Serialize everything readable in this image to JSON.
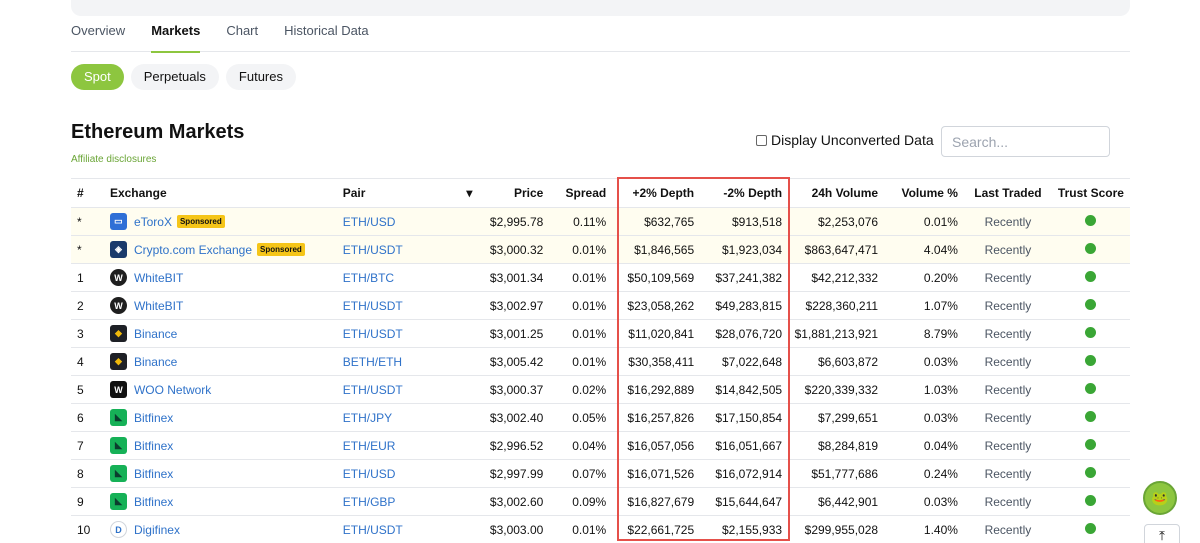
{
  "tabs": [
    {
      "label": "Overview",
      "active": false
    },
    {
      "label": "Markets",
      "active": true
    },
    {
      "label": "Chart",
      "active": false
    },
    {
      "label": "Historical Data",
      "active": false
    }
  ],
  "pills": [
    {
      "label": "Spot",
      "active": true
    },
    {
      "label": "Perpetuals",
      "active": false
    },
    {
      "label": "Futures",
      "active": false
    }
  ],
  "title": "Ethereum Markets",
  "affiliate": "Affiliate disclosures",
  "unconverted_label": "Display Unconverted Data",
  "search_placeholder": "Search...",
  "columns": {
    "rank": "#",
    "exchange": "Exchange",
    "pair": "Pair",
    "sort": "▾",
    "price": "Price",
    "spread": "Spread",
    "plus_depth": "+2% Depth",
    "minus_depth": "-2% Depth",
    "volume": "24h Volume",
    "volume_pct": "Volume %",
    "last_traded": "Last Traded",
    "trust": "Trust Score"
  },
  "sponsored_label": "Sponsored",
  "rows": [
    {
      "rank": "*",
      "exchange": "eToroX",
      "sponsored": true,
      "logo": {
        "bg": "#2f6fd6",
        "glyph": "▭",
        "shape": "sq"
      },
      "pair": "ETH/USD",
      "price": "$2,995.78",
      "spread": "0.11%",
      "plus_depth": "$632,765",
      "minus_depth": "$913,518",
      "volume": "$2,253,076",
      "volume_pct": "0.01%",
      "last_traded": "Recently",
      "trust_color": "#3aa635"
    },
    {
      "rank": "*",
      "exchange": "Crypto.com Exchange",
      "sponsored": true,
      "logo": {
        "bg": "#1a3a6b",
        "glyph": "◈",
        "shape": "sq"
      },
      "pair": "ETH/USDT",
      "price": "$3,000.32",
      "spread": "0.01%",
      "plus_depth": "$1,846,565",
      "minus_depth": "$1,923,034",
      "volume": "$863,647,471",
      "volume_pct": "4.04%",
      "last_traded": "Recently",
      "trust_color": "#3aa635"
    },
    {
      "rank": "1",
      "exchange": "WhiteBIT",
      "sponsored": false,
      "logo": {
        "bg": "#1f1f1f",
        "glyph": "W",
        "shape": "circle"
      },
      "pair": "ETH/BTC",
      "price": "$3,001.34",
      "spread": "0.01%",
      "plus_depth": "$50,109,569",
      "minus_depth": "$37,241,382",
      "volume": "$42,212,332",
      "volume_pct": "0.20%",
      "last_traded": "Recently",
      "trust_color": "#3aa635"
    },
    {
      "rank": "2",
      "exchange": "WhiteBIT",
      "sponsored": false,
      "logo": {
        "bg": "#1f1f1f",
        "glyph": "W",
        "shape": "circle"
      },
      "pair": "ETH/USDT",
      "price": "$3,002.97",
      "spread": "0.01%",
      "plus_depth": "$23,058,262",
      "minus_depth": "$49,283,815",
      "volume": "$228,360,211",
      "volume_pct": "1.07%",
      "last_traded": "Recently",
      "trust_color": "#3aa635"
    },
    {
      "rank": "3",
      "exchange": "Binance",
      "sponsored": false,
      "logo": {
        "bg": "#1e2026",
        "glyph": "◆",
        "shape": "sq",
        "fg": "#f0b90b"
      },
      "pair": "ETH/USDT",
      "price": "$3,001.25",
      "spread": "0.01%",
      "plus_depth": "$11,020,841",
      "minus_depth": "$28,076,720",
      "volume": "$1,881,213,921",
      "volume_pct": "8.79%",
      "last_traded": "Recently",
      "trust_color": "#3aa635"
    },
    {
      "rank": "4",
      "exchange": "Binance",
      "sponsored": false,
      "logo": {
        "bg": "#1e2026",
        "glyph": "◆",
        "shape": "sq",
        "fg": "#f0b90b"
      },
      "pair": "BETH/ETH",
      "price": "$3,005.42",
      "spread": "0.01%",
      "plus_depth": "$30,358,411",
      "minus_depth": "$7,022,648",
      "volume": "$6,603,872",
      "volume_pct": "0.03%",
      "last_traded": "Recently",
      "trust_color": "#3aa635"
    },
    {
      "rank": "5",
      "exchange": "WOO Network",
      "sponsored": false,
      "logo": {
        "bg": "#111111",
        "glyph": "W",
        "shape": "sq"
      },
      "pair": "ETH/USDT",
      "price": "$3,000.37",
      "spread": "0.02%",
      "plus_depth": "$16,292,889",
      "minus_depth": "$14,842,505",
      "volume": "$220,339,332",
      "volume_pct": "1.03%",
      "last_traded": "Recently",
      "trust_color": "#3aa635"
    },
    {
      "rank": "6",
      "exchange": "Bitfinex",
      "sponsored": false,
      "logo": {
        "bg": "#16b157",
        "glyph": "◣",
        "shape": "sq",
        "fg": "#0b3d2e"
      },
      "pair": "ETH/JPY",
      "price": "$3,002.40",
      "spread": "0.05%",
      "plus_depth": "$16,257,826",
      "minus_depth": "$17,150,854",
      "volume": "$7,299,651",
      "volume_pct": "0.03%",
      "last_traded": "Recently",
      "trust_color": "#3aa635"
    },
    {
      "rank": "7",
      "exchange": "Bitfinex",
      "sponsored": false,
      "logo": {
        "bg": "#16b157",
        "glyph": "◣",
        "shape": "sq",
        "fg": "#0b3d2e"
      },
      "pair": "ETH/EUR",
      "price": "$2,996.52",
      "spread": "0.04%",
      "plus_depth": "$16,057,056",
      "minus_depth": "$16,051,667",
      "volume": "$8,284,819",
      "volume_pct": "0.04%",
      "last_traded": "Recently",
      "trust_color": "#3aa635"
    },
    {
      "rank": "8",
      "exchange": "Bitfinex",
      "sponsored": false,
      "logo": {
        "bg": "#16b157",
        "glyph": "◣",
        "shape": "sq",
        "fg": "#0b3d2e"
      },
      "pair": "ETH/USD",
      "price": "$2,997.99",
      "spread": "0.07%",
      "plus_depth": "$16,071,526",
      "minus_depth": "$16,072,914",
      "volume": "$51,777,686",
      "volume_pct": "0.24%",
      "last_traded": "Recently",
      "trust_color": "#3aa635"
    },
    {
      "rank": "9",
      "exchange": "Bitfinex",
      "sponsored": false,
      "logo": {
        "bg": "#16b157",
        "glyph": "◣",
        "shape": "sq",
        "fg": "#0b3d2e"
      },
      "pair": "ETH/GBP",
      "price": "$3,002.60",
      "spread": "0.09%",
      "plus_depth": "$16,827,679",
      "minus_depth": "$15,644,647",
      "volume": "$6,442,901",
      "volume_pct": "0.03%",
      "last_traded": "Recently",
      "trust_color": "#3aa635"
    },
    {
      "rank": "10",
      "exchange": "Digifinex",
      "sponsored": false,
      "logo": {
        "bg": "#ffffff",
        "glyph": "D",
        "shape": "circle",
        "fg": "#2f72c9"
      },
      "pair": "ETH/USDT",
      "price": "$3,003.00",
      "spread": "0.01%",
      "plus_depth": "$22,661,725",
      "minus_depth": "$2,155,933",
      "volume": "$299,955,028",
      "volume_pct": "1.40%",
      "last_traded": "Recently",
      "trust_color": "#3aa635"
    }
  ],
  "icons": {
    "mascot": "gecko-mascot-icon",
    "back_to_top": "arrow-up-icon"
  }
}
